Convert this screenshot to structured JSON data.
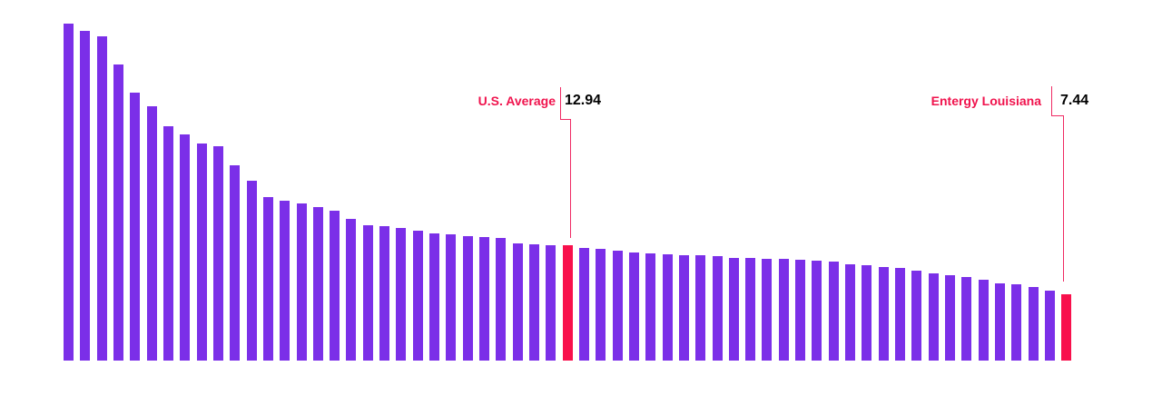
{
  "chart_data": {
    "type": "bar",
    "title": "",
    "xlabel": "",
    "ylabel": "",
    "grid": false,
    "axes_visible": false,
    "legend": "none",
    "sort_order": "descending",
    "bar_count": 61,
    "ylim": [
      0,
      38
    ],
    "colors": {
      "bar": "#7b2fe8",
      "highlight": "#f8104c",
      "annotation_label_text": "#f0134d",
      "annotation_value_text": "#000000",
      "leader_line": "#ef2a63"
    },
    "values": [
      37.9,
      37.1,
      36.5,
      33.3,
      30.2,
      28.6,
      26.4,
      25.5,
      24.4,
      24.1,
      22.0,
      20.2,
      18.4,
      18.0,
      17.7,
      17.3,
      16.9,
      15.9,
      15.2,
      15.1,
      14.9,
      14.6,
      14.3,
      14.2,
      14.0,
      13.9,
      13.8,
      13.2,
      13.1,
      13.0,
      12.94,
      12.7,
      12.6,
      12.4,
      12.2,
      12.1,
      12.0,
      11.9,
      11.85,
      11.8,
      11.6,
      11.55,
      11.5,
      11.45,
      11.35,
      11.25,
      11.1,
      10.85,
      10.7,
      10.55,
      10.4,
      10.1,
      9.85,
      9.65,
      9.4,
      9.05,
      8.7,
      8.55,
      8.25,
      7.85,
      7.44
    ],
    "highlighted_bars": [
      {
        "index": 30,
        "label": "U.S. Average",
        "value": 12.94,
        "value_text": "12.94"
      },
      {
        "index": 60,
        "label": "Entergy Louisiana",
        "value": 7.44,
        "value_text": "7.44"
      }
    ]
  }
}
